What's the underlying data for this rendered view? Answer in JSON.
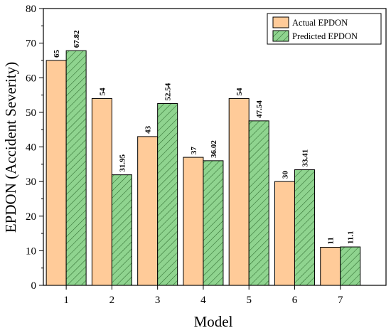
{
  "chart_data": {
    "type": "bar",
    "categories": [
      "1",
      "2",
      "3",
      "4",
      "5",
      "6",
      "7"
    ],
    "series": [
      {
        "name": "Actual EPDON",
        "values": [
          65,
          54,
          43,
          37,
          54,
          30,
          11
        ],
        "labels": [
          "65",
          "54",
          "43",
          "37",
          "54",
          "30",
          "11"
        ],
        "color": "#FFCB99",
        "pattern": "solid"
      },
      {
        "name": "Predicted EPDON",
        "values": [
          67.82,
          31.95,
          52.54,
          36.02,
          47.54,
          33.41,
          11.1
        ],
        "labels": [
          "67.82",
          "31.95",
          "52.54",
          "36.02",
          "47.54",
          "33.41",
          "11.1"
        ],
        "color": "#8FD48F",
        "pattern": "diagonal-hatch"
      }
    ],
    "xlabel": "Model",
    "ylabel": "EPDON (Accident Severity)",
    "ylim": [
      0,
      80
    ],
    "yticks": [
      "0",
      "10",
      "20",
      "30",
      "40",
      "50",
      "60",
      "70",
      "80"
    ],
    "grid": false,
    "legend_position": "top-right"
  }
}
